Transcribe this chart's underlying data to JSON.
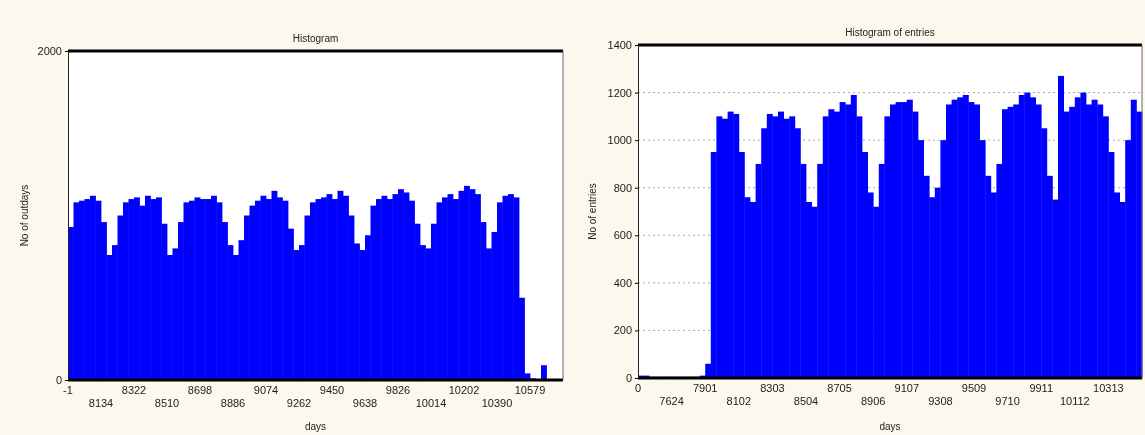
{
  "chart_data": [
    {
      "type": "bar",
      "title": "Histogram",
      "xlabel": "days",
      "ylabel": "No of outdays",
      "color": "#0000ff",
      "ylim": [
        0,
        2000
      ],
      "yticks": [
        0,
        2000
      ],
      "grid": false,
      "categories": [
        "-1",
        null,
        null,
        null,
        null,
        null,
        "8134",
        null,
        null,
        null,
        null,
        null,
        "8322",
        null,
        null,
        null,
        null,
        null,
        "8510",
        null,
        null,
        null,
        null,
        null,
        "8698",
        null,
        null,
        null,
        null,
        null,
        "8886",
        null,
        null,
        null,
        null,
        null,
        "9074",
        null,
        null,
        null,
        null,
        null,
        "9262",
        null,
        null,
        null,
        null,
        null,
        "9450",
        null,
        null,
        null,
        null,
        null,
        "9638",
        null,
        null,
        null,
        null,
        null,
        "9826",
        null,
        null,
        null,
        null,
        null,
        "10014",
        null,
        null,
        null,
        null,
        null,
        "10202",
        null,
        null,
        null,
        null,
        null,
        "10390",
        null,
        null,
        null,
        null,
        null,
        "10579",
        null,
        null,
        null,
        null,
        null
      ],
      "values": [
        930,
        1080,
        1090,
        1100,
        1120,
        1090,
        960,
        760,
        820,
        1000,
        1080,
        1100,
        1110,
        1060,
        1120,
        1100,
        1110,
        950,
        760,
        800,
        960,
        1080,
        1090,
        1110,
        1100,
        1100,
        1120,
        1080,
        960,
        820,
        760,
        850,
        1000,
        1060,
        1090,
        1120,
        1100,
        1150,
        1110,
        1090,
        920,
        790,
        820,
        1000,
        1080,
        1100,
        1110,
        1130,
        1100,
        1150,
        1120,
        1000,
        830,
        790,
        880,
        1060,
        1100,
        1120,
        1100,
        1130,
        1160,
        1140,
        1090,
        950,
        820,
        800,
        950,
        1080,
        1110,
        1130,
        1100,
        1150,
        1180,
        1160,
        1130,
        960,
        800,
        900,
        1080,
        1120,
        1130,
        1110,
        500,
        40,
        10,
        5,
        90,
        0,
        0,
        0
      ]
    },
    {
      "type": "bar",
      "title": "Histogram of entries",
      "xlabel": "days",
      "ylabel": "No of entries",
      "color": "#0000ff",
      "ylim": [
        0,
        1400
      ],
      "yticks": [
        0,
        200,
        400,
        600,
        800,
        1000,
        1200,
        1400
      ],
      "grid": "y",
      "categories": [
        "0",
        null,
        null,
        null,
        null,
        null,
        "7624",
        null,
        null,
        null,
        null,
        null,
        "7901",
        null,
        null,
        null,
        null,
        null,
        "8102",
        null,
        null,
        null,
        null,
        null,
        "8303",
        null,
        null,
        null,
        null,
        null,
        "8504",
        null,
        null,
        null,
        null,
        null,
        "8705",
        null,
        null,
        null,
        null,
        null,
        "8906",
        null,
        null,
        null,
        null,
        null,
        "9107",
        null,
        null,
        null,
        null,
        null,
        "9308",
        null,
        null,
        null,
        null,
        null,
        "9509",
        null,
        null,
        null,
        null,
        null,
        "9710",
        null,
        null,
        null,
        null,
        null,
        "9911",
        null,
        null,
        null,
        null,
        null,
        "10112",
        null,
        null,
        null,
        null,
        null,
        "10313",
        null,
        null,
        null,
        null,
        null
      ],
      "values": [
        10,
        10,
        5,
        5,
        5,
        5,
        5,
        5,
        5,
        5,
        5,
        10,
        60,
        950,
        1100,
        1090,
        1120,
        1110,
        950,
        760,
        740,
        900,
        1050,
        1110,
        1100,
        1120,
        1090,
        1100,
        1050,
        900,
        740,
        720,
        900,
        1100,
        1130,
        1120,
        1160,
        1150,
        1190,
        1100,
        950,
        780,
        720,
        900,
        1100,
        1150,
        1160,
        1160,
        1170,
        1120,
        1000,
        850,
        760,
        800,
        1000,
        1150,
        1170,
        1180,
        1190,
        1160,
        1150,
        1000,
        850,
        780,
        900,
        1130,
        1140,
        1150,
        1190,
        1200,
        1180,
        1150,
        1050,
        850,
        750,
        1270,
        1120,
        1140,
        1180,
        1200,
        1150,
        1170,
        1150,
        1100,
        950,
        780,
        740,
        1000,
        1170,
        1120
      ]
    }
  ]
}
